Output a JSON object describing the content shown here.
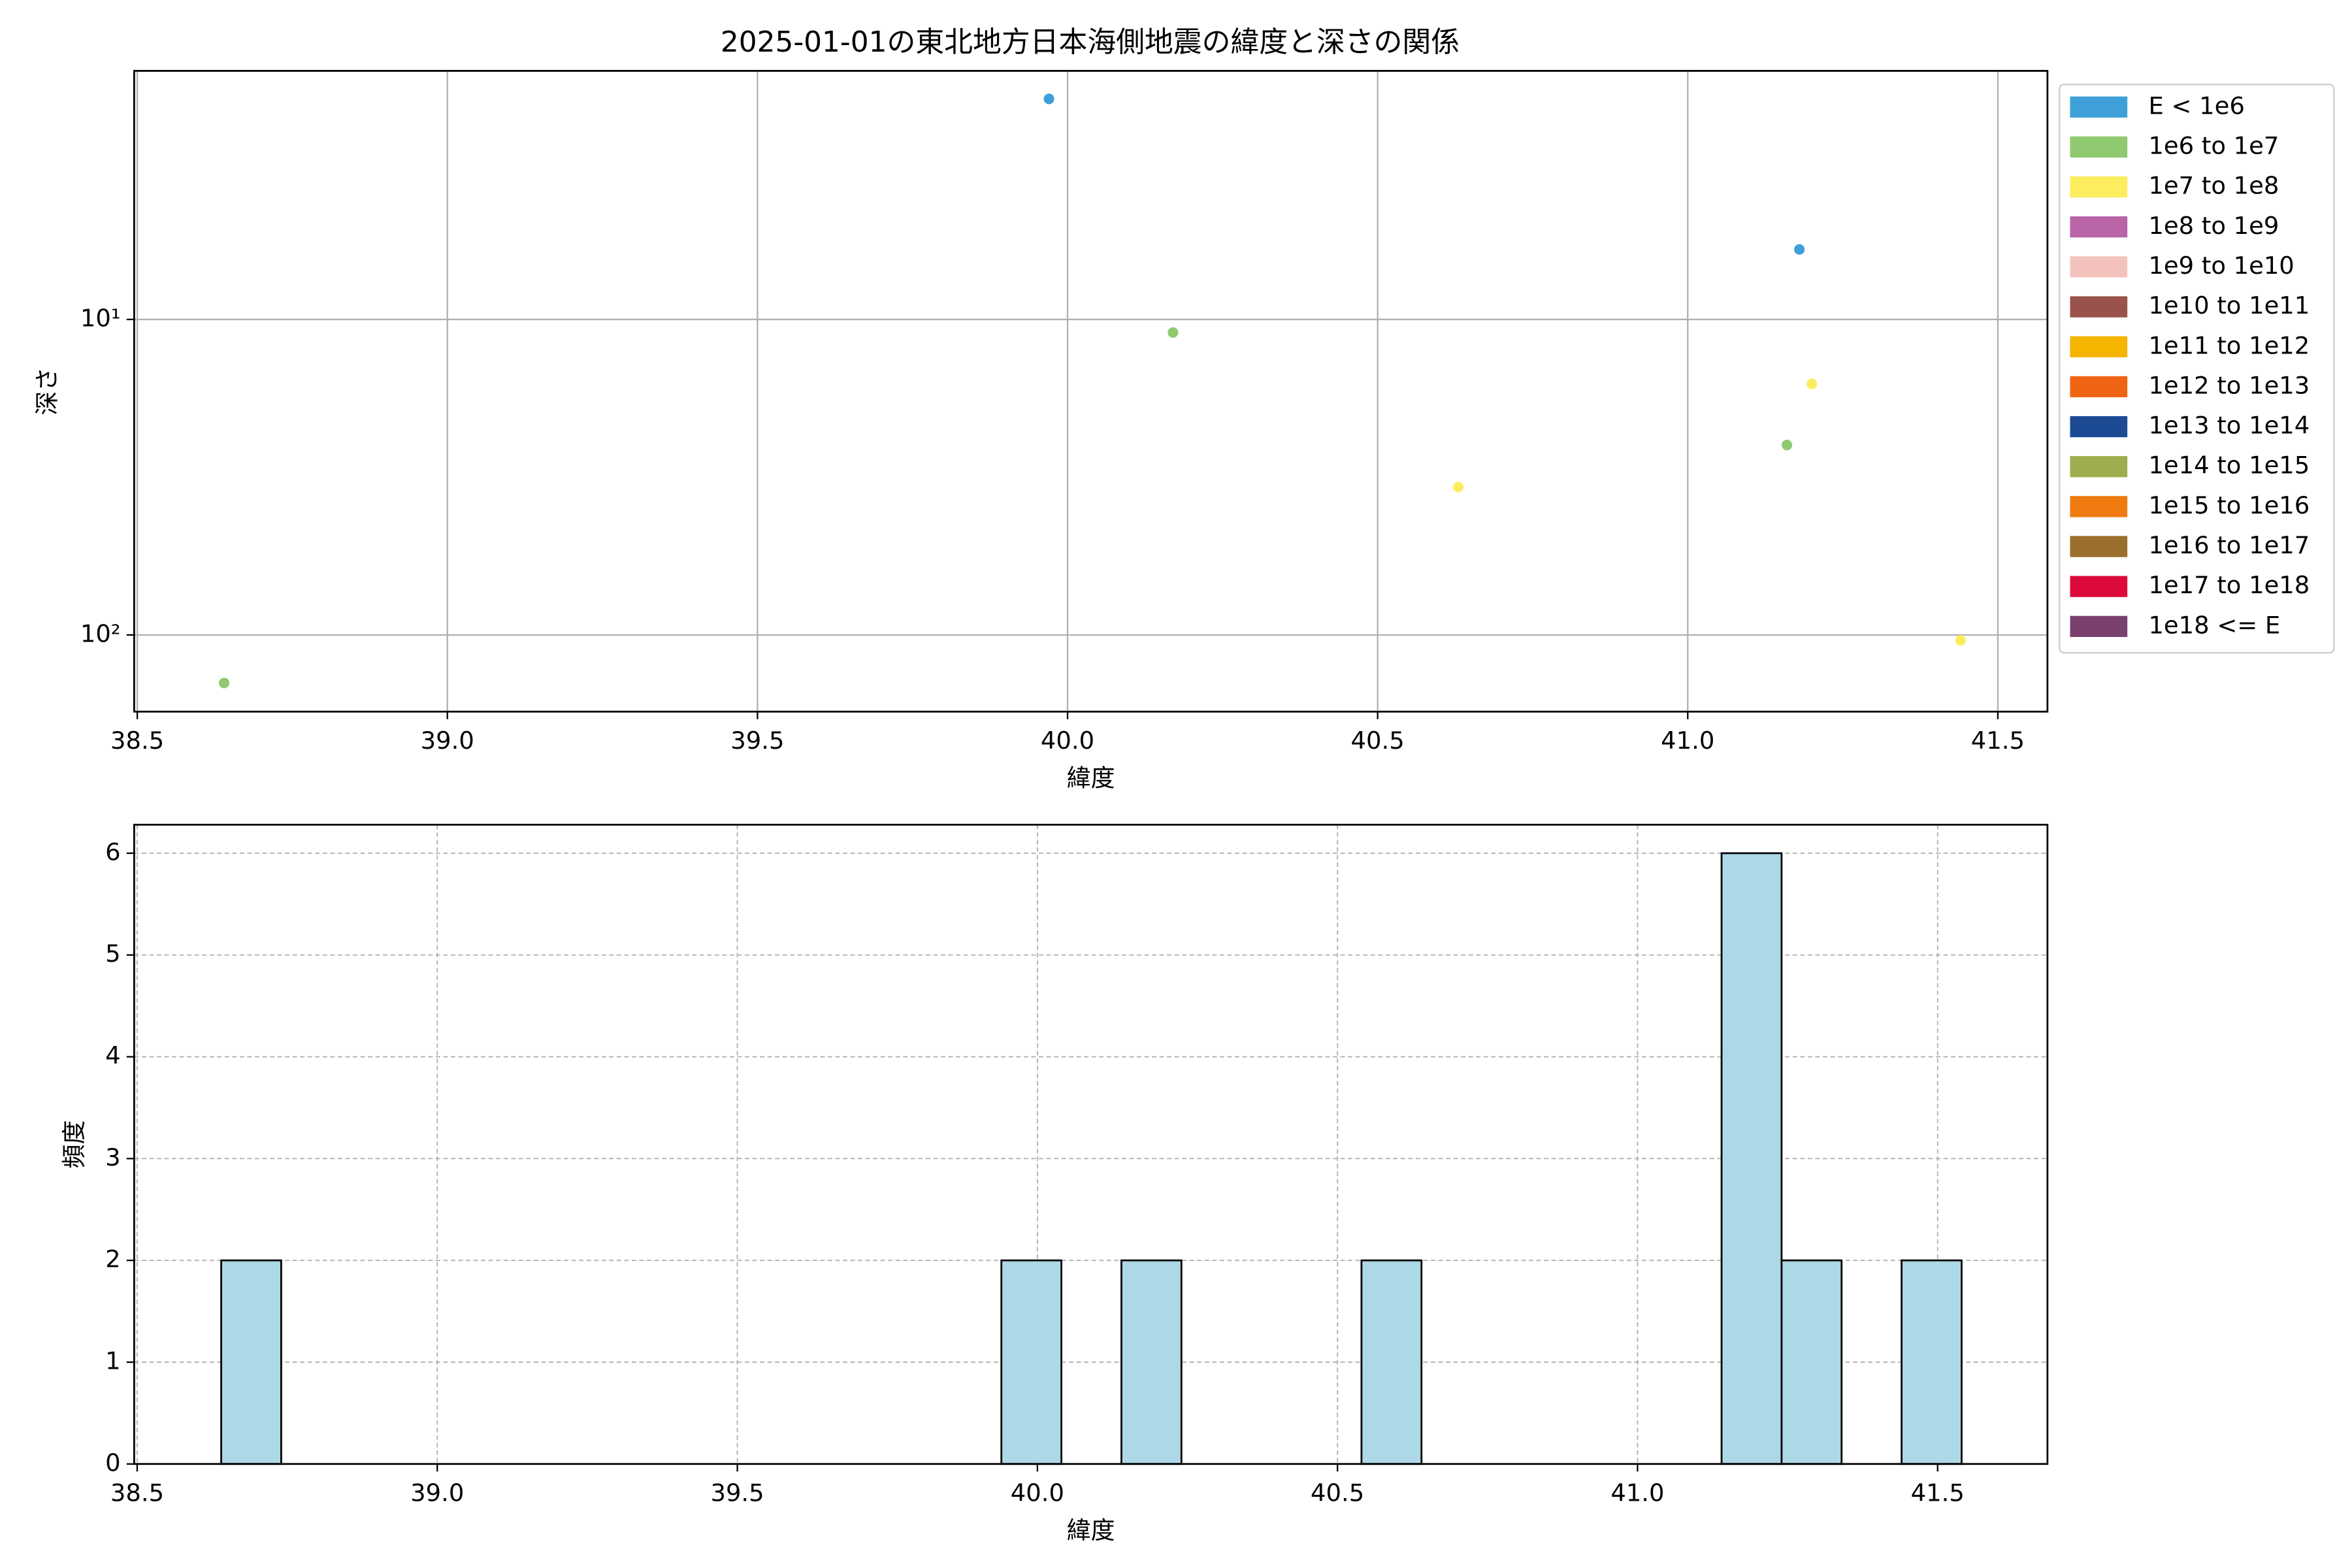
{
  "chart_data": [
    {
      "type": "scatter",
      "title": "2025-01-01の東北地方日本海側地震の緯度と深さの関係",
      "xlabel": "緯度",
      "ylabel": "深さ",
      "xlim": [
        38.495,
        41.58
      ],
      "xticks": [
        38.5,
        {
          "value": 39,
          "label": "39.0"
        },
        39.5,
        {
          "value": 40,
          "label": "40.0"
        },
        40.5,
        {
          "value": 41,
          "label": "41.0"
        },
        41.5
      ],
      "ylim": [
        175,
        1.63
      ],
      "ylog": true,
      "yticks": [
        {
          "value": 10,
          "label": "10¹"
        },
        {
          "value": 100,
          "label": "10²"
        }
      ],
      "grid": true,
      "legend": "outside-right",
      "series": [
        {
          "name": "E < 1e6",
          "color": "#3fa0d9",
          "x": [
            39.97,
            41.18
          ],
          "values": [
            2.0,
            6
          ]
        },
        {
          "name": "1e6 to 1e7",
          "color": "#8fc96f",
          "x": [
            40.17,
            41.16,
            38.64
          ],
          "values": [
            11,
            25,
            142
          ]
        },
        {
          "name": "1e7 to 1e8",
          "color": "#fced5e",
          "x": [
            41.2,
            40.63,
            41.44
          ],
          "values": [
            16,
            34,
            104
          ]
        },
        {
          "name": "1e8 to 1e9",
          "color": "#b864a7",
          "x": [],
          "values": []
        },
        {
          "name": "1e9 to 1e10",
          "color": "#f4c2bc",
          "x": [],
          "values": []
        },
        {
          "name": "1e10 to 1e11",
          "color": "#9a524c",
          "x": [],
          "values": []
        },
        {
          "name": "1e11 to 1e12",
          "color": "#f5b400",
          "x": [],
          "values": []
        },
        {
          "name": "1e12 to 1e13",
          "color": "#ef6412",
          "x": [],
          "values": []
        },
        {
          "name": "1e13 to 1e14",
          "color": "#1c4b94",
          "x": [],
          "values": []
        },
        {
          "name": "1e14 to 1e15",
          "color": "#9ead4d",
          "x": [],
          "values": []
        },
        {
          "name": "1e15 to 1e16",
          "color": "#ef7a10",
          "x": [],
          "values": []
        },
        {
          "name": "1e16 to 1e17",
          "color": "#9a6e2c",
          "x": [],
          "values": []
        },
        {
          "name": "1e17 to 1e18",
          "color": "#dc0a3c",
          "x": [],
          "values": []
        },
        {
          "name": "1e18 <= E",
          "color": "#7a416e",
          "x": [],
          "values": []
        }
      ]
    },
    {
      "type": "histogram",
      "xlabel": "緯度",
      "ylabel": "頻度",
      "xlim": [
        38.495,
        41.683
      ],
      "xticks": [
        38.5,
        {
          "value": 39,
          "label": "39.0"
        },
        39.5,
        {
          "value": 40,
          "label": "40.0"
        },
        40.5,
        {
          "value": 41,
          "label": "41.0"
        },
        41.5
      ],
      "ylim": [
        0,
        6.28
      ],
      "yticks": [
        0,
        1,
        2,
        3,
        4,
        5,
        6
      ],
      "grid": "dashed",
      "color": "#add8e6",
      "edgecolor": "#000000",
      "bins": [
        38.64,
        38.74,
        38.84,
        38.94,
        39.04,
        39.14,
        39.24,
        39.34,
        39.44,
        39.54,
        39.64,
        39.74,
        39.84,
        39.94,
        40.04,
        40.14,
        40.24,
        40.34,
        40.44,
        40.54,
        40.64,
        40.74,
        40.84,
        40.94,
        41.04,
        41.14,
        41.24,
        41.34,
        41.44,
        41.54
      ],
      "values": [
        2,
        0,
        0,
        0,
        0,
        0,
        0,
        0,
        0,
        0,
        0,
        0,
        0,
        2,
        0,
        2,
        0,
        0,
        0,
        2,
        0,
        0,
        0,
        0,
        0,
        6,
        2,
        0,
        2
      ]
    }
  ]
}
